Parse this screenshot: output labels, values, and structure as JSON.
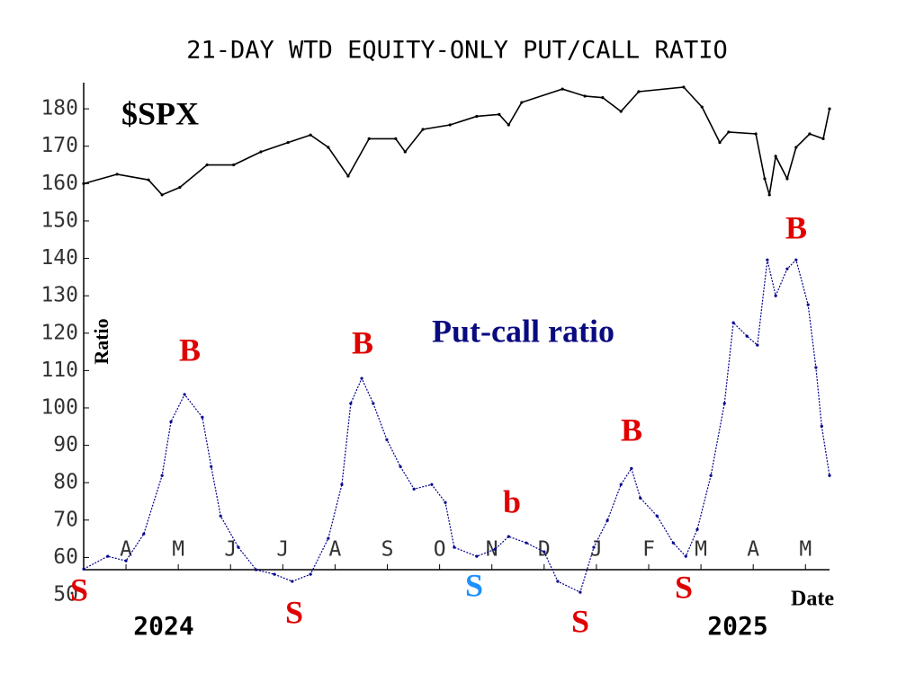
{
  "chart_data": {
    "type": "line",
    "title": "21-DAY WTD EQUITY-ONLY PUT/CALL RATIO",
    "ylabel": "Ratio",
    "xlabel": "Date",
    "year_labels": [
      "2024",
      "2025"
    ],
    "xlim": [
      0.19,
      14.46
    ],
    "xticks": [
      {
        "value": 1,
        "label": "A"
      },
      {
        "value": 2,
        "label": "M"
      },
      {
        "value": 3,
        "label": "J"
      },
      {
        "value": 4,
        "label": "J"
      },
      {
        "value": 5,
        "label": "A"
      },
      {
        "value": 6,
        "label": "S"
      },
      {
        "value": 7,
        "label": "O"
      },
      {
        "value": 8,
        "label": "N"
      },
      {
        "value": 9,
        "label": "D"
      },
      {
        "value": 10,
        "label": "J"
      },
      {
        "value": 11,
        "label": "F"
      },
      {
        "value": 12,
        "label": "M"
      },
      {
        "value": 13,
        "label": "A"
      },
      {
        "value": 14,
        "label": "M"
      }
    ],
    "ylim": [
      50,
      187
    ],
    "yticks": [
      50,
      60,
      70,
      80,
      90,
      100,
      110,
      120,
      130,
      140,
      150,
      160,
      170,
      180
    ],
    "grid": false,
    "series": [
      {
        "name": "$SPX",
        "color": "#000000",
        "x": [
          0.19,
          0.83,
          1.43,
          1.69,
          2.03,
          2.55,
          3.06,
          3.58,
          4.1,
          4.53,
          4.87,
          5.25,
          5.65,
          6.16,
          6.34,
          6.68,
          7.2,
          7.71,
          8.14,
          8.32,
          8.57,
          9.35,
          9.78,
          10.12,
          10.47,
          10.81,
          11.67,
          12.02,
          12.36,
          12.53,
          13.05,
          13.22,
          13.31,
          13.43,
          13.65,
          13.82,
          14.08,
          14.34,
          14.46
        ],
        "values": [
          160,
          162.5,
          161,
          157,
          159,
          165,
          165,
          168.5,
          171,
          173,
          169.7,
          162,
          172,
          172,
          168.5,
          174.5,
          175.7,
          178,
          178.5,
          175.7,
          181.7,
          185.3,
          183.4,
          183,
          179.3,
          184.6,
          185.8,
          180.5,
          171,
          173.8,
          173.3,
          161.3,
          157,
          167.3,
          161.3,
          169.7,
          173.3,
          172,
          180
        ]
      },
      {
        "name": "Put-call ratio",
        "color": "#00008b",
        "x": [
          0.19,
          0.65,
          1.0,
          1.34,
          1.69,
          1.86,
          2.12,
          2.46,
          2.63,
          2.81,
          3.15,
          3.49,
          3.84,
          4.18,
          4.53,
          4.87,
          5.13,
          5.3,
          5.51,
          5.73,
          5.99,
          6.25,
          6.51,
          6.85,
          7.11,
          7.28,
          7.71,
          8.06,
          8.32,
          8.66,
          9.0,
          9.26,
          9.69,
          9.95,
          10.21,
          10.47,
          10.67,
          10.84,
          11.16,
          11.47,
          11.71,
          11.93,
          12.19,
          12.45,
          12.62,
          12.88,
          13.08,
          13.27,
          13.43,
          13.65,
          13.82,
          14.05,
          14.2,
          14.31,
          14.46
        ],
        "values": [
          56.9,
          60.3,
          59.1,
          66.3,
          81.9,
          96.3,
          103.6,
          97.5,
          84.3,
          71.1,
          62.7,
          56.7,
          55.5,
          53.6,
          55.5,
          65.1,
          79.5,
          101.2,
          107.9,
          101.2,
          91.5,
          84.3,
          78.3,
          79.5,
          74.7,
          62.7,
          60.3,
          62.2,
          65.6,
          63.9,
          61.5,
          53.6,
          50.7,
          62.7,
          69.9,
          79.5,
          83.8,
          75.9,
          71.1,
          63.9,
          60.3,
          67.5,
          81.9,
          101.2,
          122.8,
          119.2,
          116.8,
          139.6,
          130.0,
          137.2,
          139.6,
          127.6,
          110.8,
          95.1,
          81.9
        ]
      }
    ],
    "annotations": [
      {
        "text": "B",
        "color": "#e00000"
      },
      {
        "text": "B",
        "color": "#e00000"
      },
      {
        "text": "B",
        "color": "#e00000"
      },
      {
        "text": "B",
        "color": "#e00000"
      },
      {
        "text": "b",
        "color": "#e00000"
      },
      {
        "text": "S",
        "color": "#e00000"
      },
      {
        "text": "S",
        "color": "#e00000"
      },
      {
        "text": "S",
        "color": "#1e90ff"
      },
      {
        "text": "S",
        "color": "#e00000"
      },
      {
        "text": "S",
        "color": "#e00000"
      }
    ]
  }
}
